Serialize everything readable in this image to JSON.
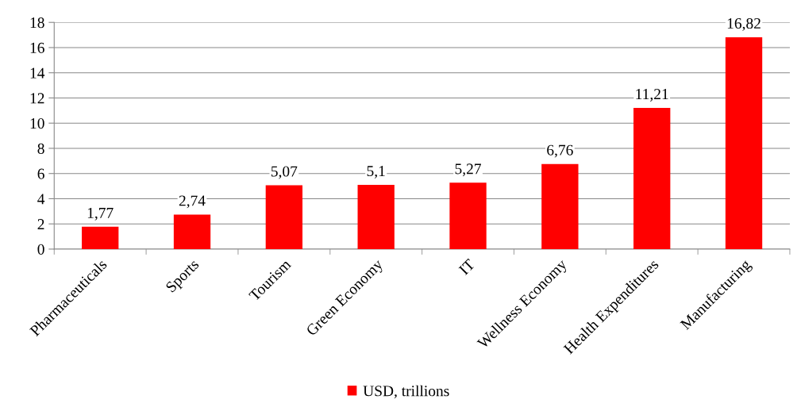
{
  "chart_data": {
    "type": "bar",
    "categories": [
      "Pharmaceuticals",
      "Sports",
      "Tourism",
      "Green Economy",
      "IT",
      "Wellness Economy",
      "Health Expenditures",
      "Manufacturing"
    ],
    "series": [
      {
        "name": "USD, trillions",
        "color": "#ff0000",
        "values": [
          1.77,
          2.74,
          5.07,
          5.1,
          5.27,
          6.76,
          11.21,
          16.82
        ],
        "value_labels": [
          "1,77",
          "2,74",
          "5,07",
          "5,1",
          "5,27",
          "6,76",
          "11,21",
          "16,82"
        ]
      }
    ],
    "ylim": [
      0,
      18
    ],
    "yticks": [
      0,
      2,
      4,
      6,
      8,
      10,
      12,
      14,
      16,
      18
    ],
    "grid": "y",
    "legend": "bottom"
  }
}
